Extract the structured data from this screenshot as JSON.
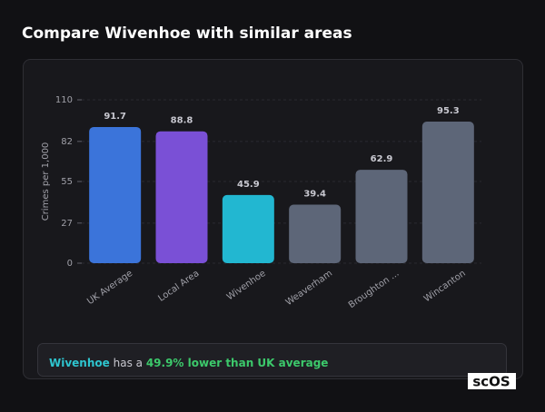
{
  "page": {
    "title": "Compare Wivenhoe with similar areas"
  },
  "chart_data": {
    "type": "bar",
    "y_label": "Crimes per 1,000",
    "categories": [
      "UK Average",
      "Local Area",
      "Wivenhoe",
      "Weaverham",
      "Broughton ...",
      "Wincanton"
    ],
    "values": [
      91.7,
      88.8,
      45.9,
      39.4,
      62.9,
      95.3
    ],
    "colors": [
      "#3b74da",
      "#7a50d6",
      "#22b7d1",
      "#5d6678",
      "#5d6678",
      "#5d6678"
    ],
    "ylim": [
      0,
      110
    ],
    "yticks": [
      0,
      27,
      55,
      82,
      110
    ],
    "grid": true
  },
  "summary": {
    "place": "Wivenhoe",
    "text": "has a",
    "comparison": "49.9% lower than UK average"
  },
  "logo": "scOS"
}
